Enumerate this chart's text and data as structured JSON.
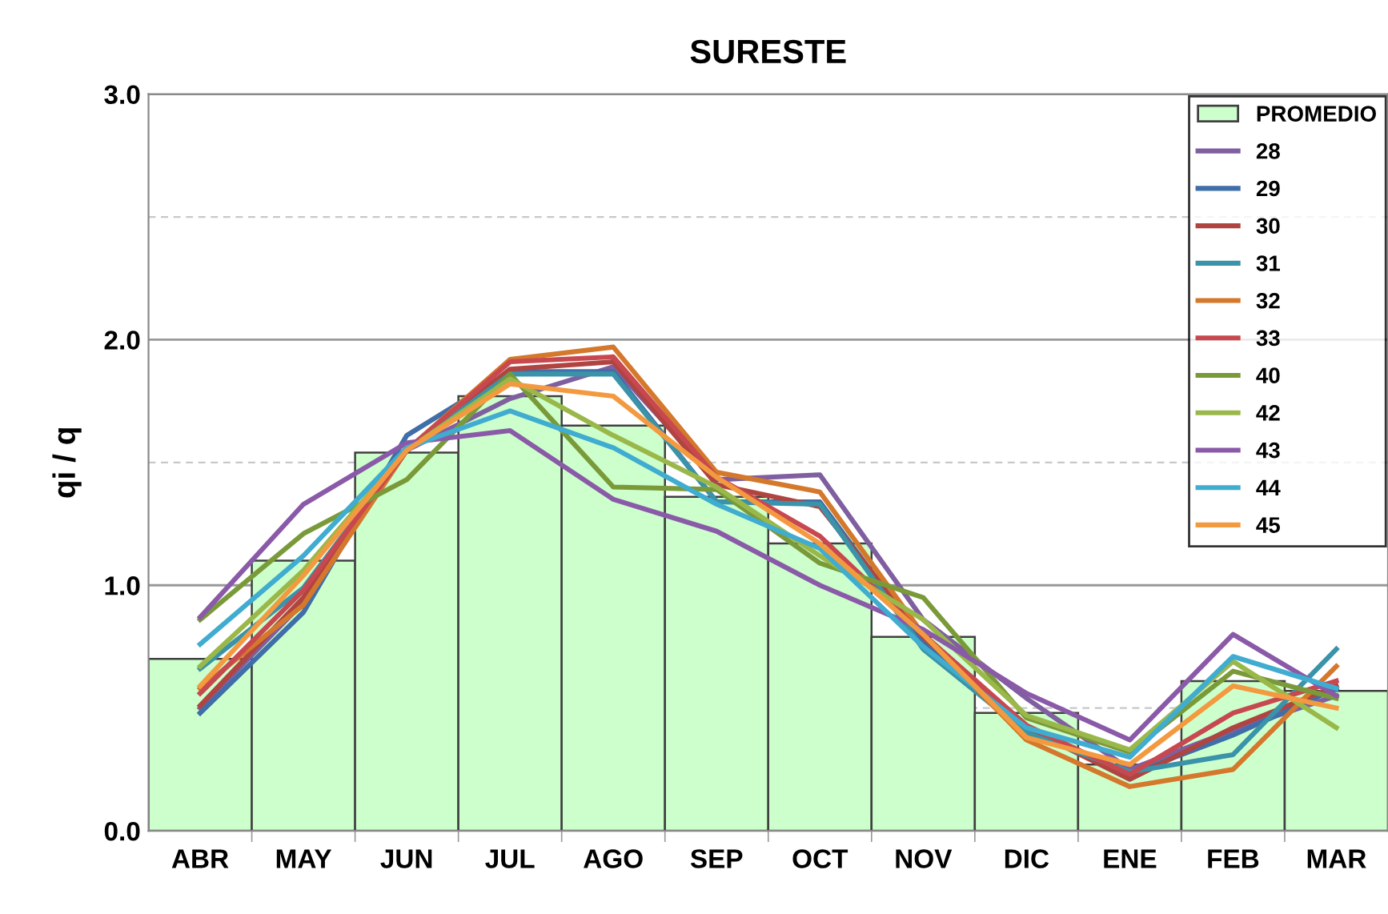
{
  "chart_data": {
    "type": "line",
    "title": "SURESTE",
    "ylabel": "qi / q",
    "categories": [
      "ABR",
      "MAY",
      "JUN",
      "JUL",
      "AGO",
      "SEP",
      "OCT",
      "NOV",
      "DIC",
      "ENE",
      "FEB",
      "MAR"
    ],
    "ylim": [
      0,
      3
    ],
    "yticks": [
      {
        "value": 0,
        "label": "0.0"
      },
      {
        "value": 0.5,
        "label": null
      },
      {
        "value": 1.0,
        "label": "1.0"
      },
      {
        "value": 1.5,
        "label": null
      },
      {
        "value": 2.0,
        "label": "2.0"
      },
      {
        "value": 2.5,
        "label": null
      },
      {
        "value": 3.0,
        "label": "3.0"
      }
    ],
    "grid": "y",
    "legend": "top right",
    "marker": "none",
    "line_style": "solid",
    "series": [
      {
        "name": "PROMEDIO",
        "type": "bar",
        "color": "#ccffcc",
        "values": [
          0.7,
          1.1,
          1.54,
          1.77,
          1.65,
          1.36,
          1.17,
          0.79,
          0.48,
          0.27,
          0.61,
          0.57
        ]
      },
      {
        "name": "28",
        "color": "#7f5fa0",
        "values": [
          0.5,
          0.93,
          1.55,
          1.76,
          1.89,
          1.43,
          1.45,
          0.86,
          0.54,
          0.25,
          0.41,
          0.55
        ]
      },
      {
        "name": "29",
        "color": "#3f6ea8",
        "values": [
          0.48,
          0.89,
          1.61,
          1.87,
          1.87,
          1.34,
          1.34,
          0.77,
          0.41,
          0.23,
          0.39,
          0.58
        ]
      },
      {
        "name": "30",
        "color": "#b04440",
        "values": [
          0.51,
          0.95,
          1.55,
          1.88,
          1.91,
          1.41,
          1.32,
          0.79,
          0.42,
          0.21,
          0.42,
          0.59
        ]
      },
      {
        "name": "31",
        "color": "#3a93a8",
        "values": [
          0.66,
          0.99,
          1.55,
          1.86,
          1.86,
          1.34,
          1.33,
          0.74,
          0.4,
          0.24,
          0.31,
          0.74
        ]
      },
      {
        "name": "32",
        "color": "#d4782c",
        "values": [
          0.58,
          0.92,
          1.55,
          1.92,
          1.97,
          1.46,
          1.38,
          0.8,
          0.37,
          0.18,
          0.25,
          0.67
        ]
      },
      {
        "name": "33",
        "color": "#c84850",
        "values": [
          0.56,
          0.98,
          1.55,
          1.91,
          1.93,
          1.44,
          1.2,
          0.8,
          0.43,
          0.23,
          0.48,
          0.61
        ]
      },
      {
        "name": "40",
        "color": "#7a9a3a",
        "values": [
          0.86,
          1.21,
          1.43,
          1.86,
          1.4,
          1.39,
          1.09,
          0.95,
          0.46,
          0.32,
          0.65,
          0.54
        ]
      },
      {
        "name": "42",
        "color": "#9ab84a",
        "values": [
          0.67,
          1.06,
          1.55,
          1.84,
          1.61,
          1.4,
          1.12,
          0.86,
          0.47,
          0.33,
          0.69,
          0.42
        ]
      },
      {
        "name": "43",
        "color": "#8a5aa8",
        "values": [
          0.87,
          1.33,
          1.58,
          1.63,
          1.35,
          1.22,
          1.0,
          0.82,
          0.56,
          0.37,
          0.8,
          0.55
        ]
      },
      {
        "name": "44",
        "color": "#40acd0",
        "values": [
          0.76,
          1.12,
          1.56,
          1.71,
          1.56,
          1.33,
          1.15,
          0.75,
          0.42,
          0.3,
          0.71,
          0.58
        ]
      },
      {
        "name": "45",
        "color": "#f39a40",
        "values": [
          0.59,
          1.04,
          1.55,
          1.82,
          1.77,
          1.44,
          1.17,
          0.8,
          0.38,
          0.27,
          0.59,
          0.5
        ]
      }
    ]
  }
}
